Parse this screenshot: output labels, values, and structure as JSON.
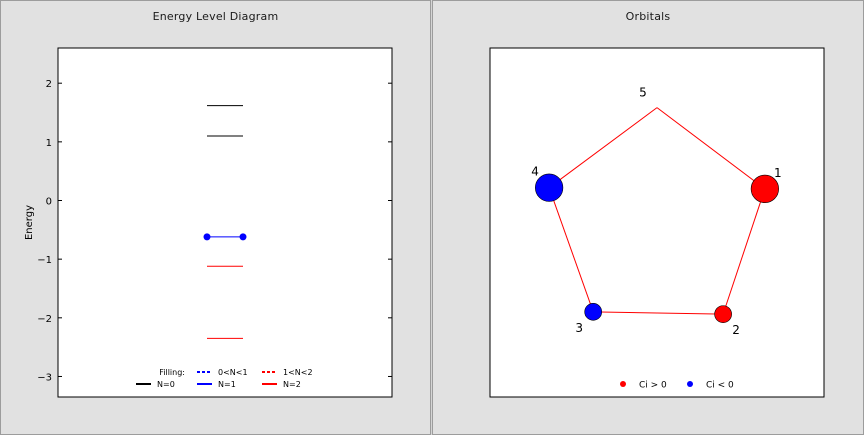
{
  "panels": {
    "energy": {
      "title": "Energy Level Diagram"
    },
    "orbitals": {
      "title": "Orbitals"
    }
  },
  "chart_data": [
    {
      "type": "energy-level",
      "title": "Energy Level Diagram",
      "ylabel": "Energy",
      "ylim": [
        -3.35,
        2.6
      ],
      "yticks": [
        {
          "value": 2,
          "label": "2"
        },
        {
          "value": 1,
          "label": "1"
        },
        {
          "value": 0,
          "label": "0"
        },
        {
          "value": -1,
          "label": "−1"
        },
        {
          "value": -2,
          "label": "−2"
        },
        {
          "value": -3,
          "label": "−3"
        }
      ],
      "levels": [
        {
          "energy": 1.618,
          "filling": "N=0",
          "color": "#000000"
        },
        {
          "energy": 1.1,
          "filling": "N=0",
          "color": "#000000"
        },
        {
          "energy": -0.62,
          "filling": "N=1",
          "color": "#0000ff",
          "degenerate_markers": true
        },
        {
          "energy": -1.12,
          "filling": "N=2",
          "color": "#ff0000"
        },
        {
          "energy": -2.35,
          "filling": "N=2",
          "color": "#ff0000"
        }
      ],
      "legend": {
        "title": "Filling:",
        "placement": "bottom-center",
        "entries": [
          {
            "label": "0<N<1",
            "color": "#0000ff",
            "style": "dashed"
          },
          {
            "label": "1<N<2",
            "color": "#ff0000",
            "style": "dashed"
          },
          {
            "label": "N=0",
            "color": "#000000",
            "style": "solid"
          },
          {
            "label": "N=1",
            "color": "#0000ff",
            "style": "solid"
          },
          {
            "label": "N=2",
            "color": "#ff0000",
            "style": "solid"
          }
        ]
      }
    },
    {
      "type": "scatter",
      "title": "Orbitals",
      "xlim": [
        -1.45,
        1.45
      ],
      "ylim": [
        -1.45,
        1.45
      ],
      "edge_color": "#ff0000",
      "atoms": [
        {
          "label": "1",
          "x": 0.93,
          "y": 0.29,
          "coefficient": 0.6,
          "color": "#ff0000"
        },
        {
          "label": "2",
          "x": 0.57,
          "y": -0.79,
          "coefficient": 0.37,
          "color": "#ff0000"
        },
        {
          "label": "3",
          "x": -0.55,
          "y": -0.77,
          "coefficient": -0.37,
          "color": "#0000ff"
        },
        {
          "label": "4",
          "x": -0.93,
          "y": 0.3,
          "coefficient": -0.6,
          "color": "#0000ff"
        },
        {
          "label": "5",
          "x": 0.0,
          "y": 0.99,
          "coefficient": 0.0,
          "color": "#ff0000"
        }
      ],
      "ring": [
        "1",
        "2",
        "3",
        "4",
        "5"
      ],
      "legend": {
        "placement": "bottom-center",
        "entries": [
          {
            "label": "Ci > 0",
            "color": "#ff0000"
          },
          {
            "label": "Ci < 0",
            "color": "#0000ff"
          }
        ]
      }
    }
  ]
}
